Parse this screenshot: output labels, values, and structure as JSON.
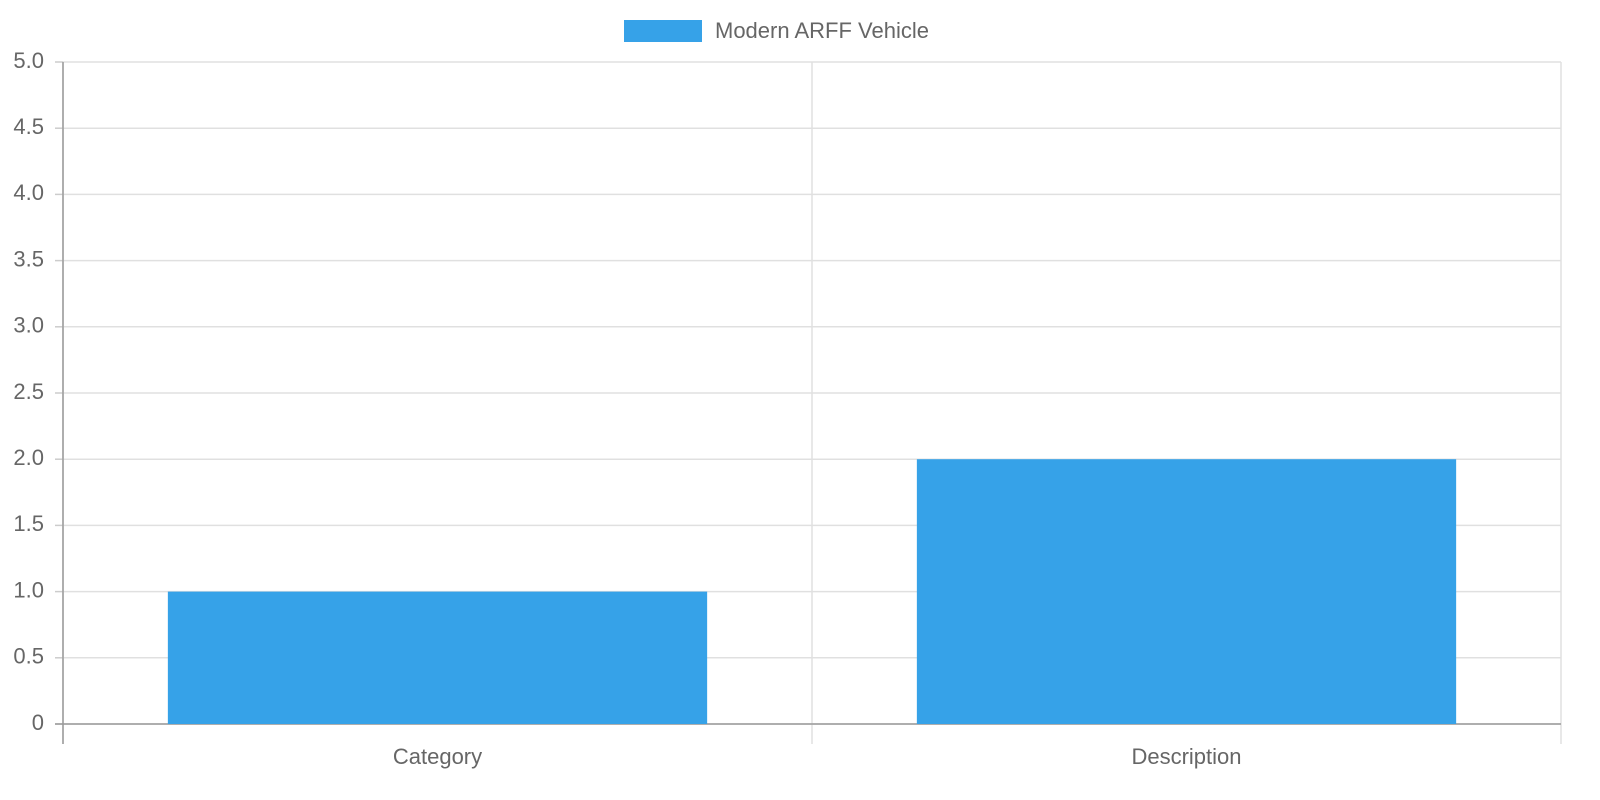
{
  "chart_data": {
    "type": "bar",
    "categories": [
      "Category",
      "Description"
    ],
    "series": [
      {
        "name": "Modern ARFF Vehicle",
        "color": "#36a2e8",
        "values": [
          1,
          2
        ]
      }
    ],
    "ylim": [
      0,
      5
    ],
    "yticks": [
      0,
      0.5,
      {
        "value": 1,
        "label": "1.0"
      },
      1.5,
      {
        "value": 2,
        "label": "2.0"
      },
      2.5,
      {
        "value": 3,
        "label": "3.0"
      },
      3.5,
      {
        "value": 4,
        "label": "4.0"
      },
      4.5,
      {
        "value": 5,
        "label": "5.0"
      }
    ],
    "grid": true,
    "legend": "top"
  }
}
